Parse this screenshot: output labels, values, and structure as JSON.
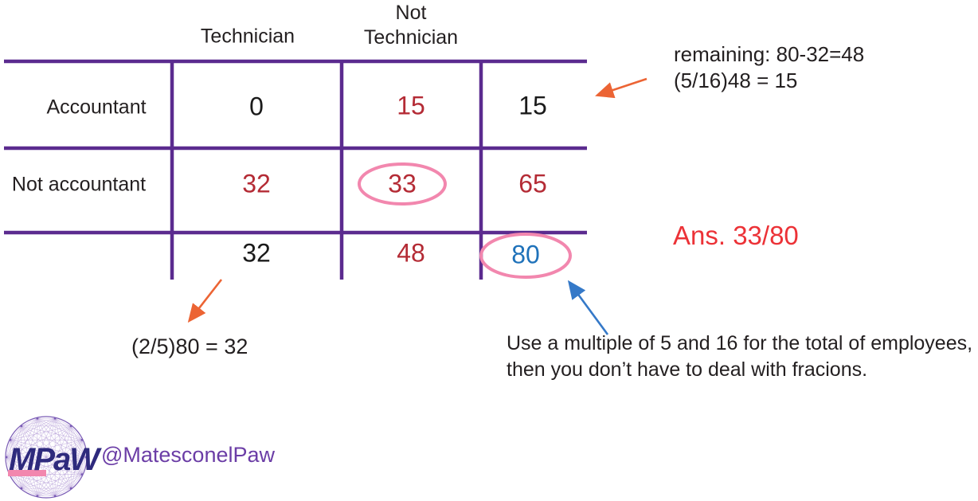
{
  "table": {
    "col_headers": [
      "Technician",
      "Not\nTechnician"
    ],
    "rows": [
      {
        "label": "Accountant",
        "cells": [
          {
            "value": "0",
            "color": "black"
          },
          {
            "value": "15",
            "color": "dark-red"
          },
          {
            "value": "15",
            "color": "black"
          }
        ]
      },
      {
        "label": "Not accountant",
        "cells": [
          {
            "value": "32",
            "color": "dark-red"
          },
          {
            "value": "33",
            "color": "dark-red",
            "circled": true
          },
          {
            "value": "65",
            "color": "dark-red"
          }
        ]
      },
      {
        "label": "",
        "cells": [
          {
            "value": "32",
            "color": "black"
          },
          {
            "value": "48",
            "color": "dark-red"
          },
          {
            "value": "80",
            "color": "blue",
            "circled": true
          }
        ]
      }
    ]
  },
  "annotations": {
    "remaining_step": "remaining: 80-32=48",
    "fraction_step": "(5/16)48 = 15",
    "answer": "Ans. 33/80",
    "column_calc": "(2/5)80 = 32",
    "tip_line1": "Use a multiple of 5 and 16 for the total of employees,",
    "tip_line2": "then you don’t have to deal with fracions."
  },
  "branding": {
    "logo_text": "MPaW",
    "handle": "@MatesconelPaw"
  },
  "colors": {
    "grid_purple": "#5b2b8f",
    "dark_red": "#b42b35",
    "answer_red": "#ec3237",
    "total_blue": "#1f72ba",
    "arrow_orange": "#ec6434",
    "arrow_blue": "#3579c8",
    "circle_pink": "#f287ae",
    "logo_navy": "#2e2a7d",
    "mesh_lilac": "#b9a3d9",
    "handle_purple": "#6b3da6",
    "text_black": "#231f20"
  }
}
